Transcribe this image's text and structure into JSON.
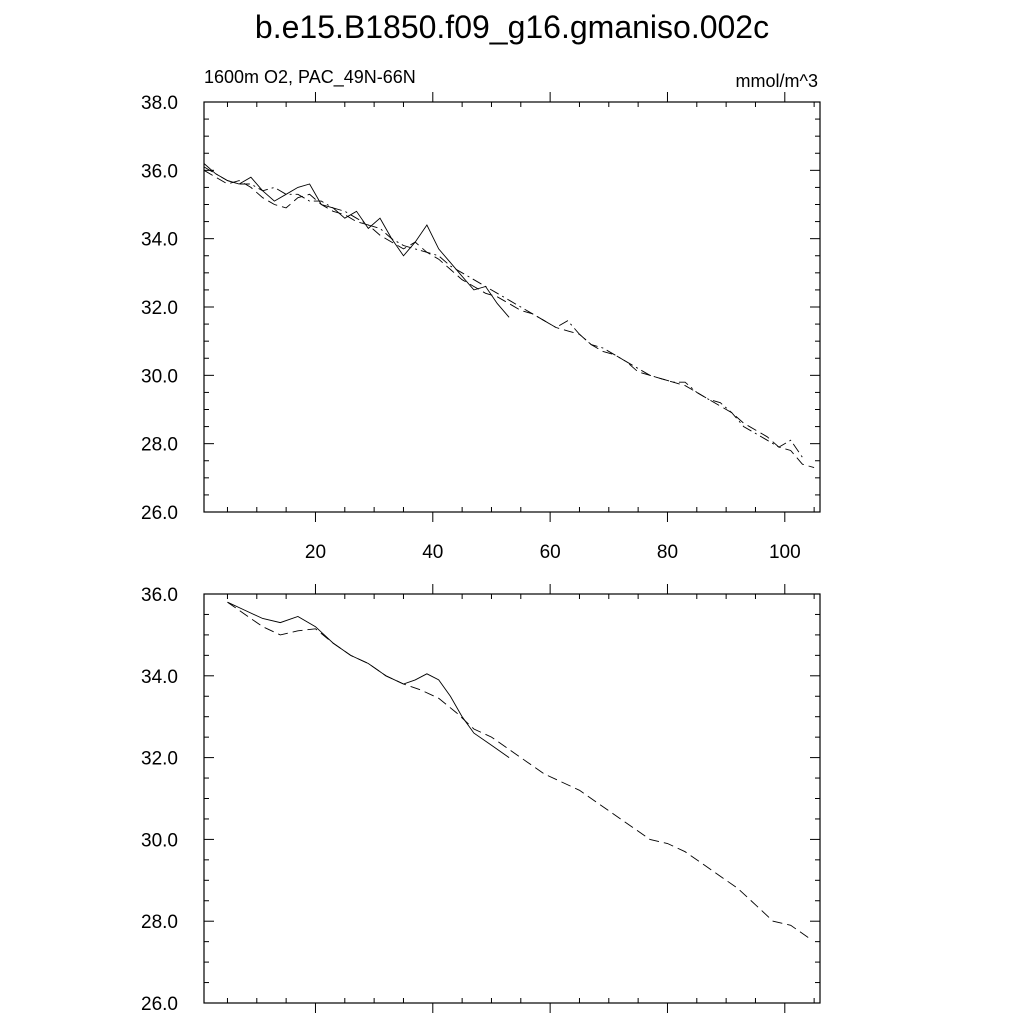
{
  "page_title": "b.e15.B1850.f09_g16.gmaniso.002c",
  "chart_data": [
    {
      "type": "line",
      "title": "b.e15.B1850.f09_g16.gmaniso.002c",
      "left_label": "1600m O2, PAC_49N-66N",
      "right_label": "mmol/m^3",
      "xlim": [
        1,
        106
      ],
      "ylim": [
        26,
        38
      ],
      "x_ticks": [
        20,
        40,
        60,
        80,
        100
      ],
      "x_tick_labels": [
        "20",
        "40",
        "60",
        "80",
        "100"
      ],
      "y_ticks": [
        26,
        28,
        30,
        32,
        34,
        36,
        38
      ],
      "y_tick_labels": [
        "26.0",
        "28.0",
        "30.0",
        "32.0",
        "34.0",
        "36.0",
        "38.0"
      ],
      "grid": false,
      "series": [
        {
          "style": "solid",
          "x": [
            1,
            3,
            5,
            7,
            9,
            11,
            13,
            15,
            17,
            19,
            21,
            23,
            25,
            27,
            29,
            31,
            33,
            35,
            37,
            39,
            41,
            43,
            45,
            47,
            49,
            51,
            53
          ],
          "y": [
            36.2,
            35.9,
            35.7,
            35.6,
            35.8,
            35.4,
            35.1,
            35.3,
            35.5,
            35.6,
            35.0,
            34.9,
            34.6,
            34.8,
            34.3,
            34.6,
            34.0,
            33.5,
            33.9,
            34.4,
            33.7,
            33.3,
            32.9,
            32.5,
            32.6,
            32.1,
            31.7
          ]
        },
        {
          "style": "dashed",
          "x": [
            1,
            3,
            5,
            7,
            9,
            11,
            13,
            15,
            17,
            19,
            21,
            23,
            25,
            27,
            29,
            31,
            33,
            35,
            37,
            39,
            41,
            43,
            45,
            47,
            49,
            51,
            53,
            55,
            57,
            59,
            61,
            63,
            65,
            67,
            69,
            71,
            73,
            75,
            77,
            79,
            81,
            83,
            85,
            87,
            89,
            91,
            93,
            95,
            97,
            99,
            101,
            103,
            105
          ],
          "y": [
            36.0,
            35.8,
            35.6,
            35.7,
            35.5,
            35.2,
            35.0,
            34.9,
            35.2,
            35.3,
            35.0,
            34.8,
            34.7,
            34.5,
            34.4,
            34.1,
            33.9,
            33.7,
            33.9,
            33.6,
            33.4,
            33.1,
            32.8,
            32.6,
            32.4,
            32.3,
            32.1,
            31.9,
            31.8,
            31.6,
            31.4,
            31.3,
            31.2,
            30.9,
            30.7,
            30.6,
            30.4,
            30.1,
            30.0,
            29.9,
            29.8,
            29.7,
            29.5,
            29.3,
            29.1,
            28.9,
            28.6,
            28.4,
            28.2,
            27.9,
            27.8,
            27.4,
            27.3
          ]
        },
        {
          "style": "dashdot",
          "x": [
            1,
            3,
            5,
            7,
            9,
            11,
            13,
            15,
            17,
            19,
            21,
            23,
            25,
            27,
            29,
            31,
            33,
            35,
            37,
            39,
            41,
            43,
            45,
            47,
            49,
            51,
            53,
            55,
            57,
            59,
            61,
            63,
            65,
            67,
            69,
            71,
            73,
            75,
            77,
            79,
            81,
            83,
            85,
            87,
            89,
            91,
            93,
            95,
            97,
            99,
            101,
            103
          ],
          "y": [
            36.1,
            35.9,
            35.7,
            35.6,
            35.6,
            35.4,
            35.5,
            35.3,
            35.3,
            35.1,
            35.1,
            34.9,
            34.8,
            34.6,
            34.4,
            34.3,
            34.0,
            33.8,
            33.7,
            33.6,
            33.5,
            33.2,
            33.0,
            32.8,
            32.6,
            32.4,
            32.2,
            32.0,
            31.8,
            31.6,
            31.4,
            31.6,
            31.2,
            30.9,
            30.8,
            30.6,
            30.4,
            30.2,
            30.0,
            29.9,
            29.8,
            29.8,
            29.5,
            29.3,
            29.2,
            28.9,
            28.5,
            28.3,
            28.1,
            27.9,
            28.1,
            27.6
          ]
        }
      ]
    },
    {
      "type": "line",
      "xlim": [
        1,
        106
      ],
      "ylim": [
        26,
        36
      ],
      "x_ticks": [
        20,
        40,
        60,
        80,
        100
      ],
      "y_ticks": [
        26,
        28,
        30,
        32,
        34,
        36
      ],
      "y_tick_labels": [
        "26.0",
        "28.0",
        "30.0",
        "32.0",
        "34.0",
        "36.0"
      ],
      "grid": false,
      "series": [
        {
          "style": "solid",
          "x": [
            5,
            8,
            11,
            14,
            17,
            20,
            23,
            26,
            29,
            32,
            35,
            37,
            39,
            41,
            43,
            45,
            47,
            50,
            53
          ],
          "y": [
            35.8,
            35.6,
            35.4,
            35.3,
            35.45,
            35.2,
            34.8,
            34.5,
            34.3,
            34.0,
            33.8,
            33.9,
            34.05,
            33.9,
            33.5,
            33.0,
            32.6,
            32.3,
            32.0
          ]
        },
        {
          "style": "dashed",
          "x": [
            5,
            8,
            11,
            14,
            17,
            20,
            23,
            26,
            29,
            32,
            35,
            38,
            41,
            44,
            47,
            50,
            53,
            56,
            59,
            62,
            65,
            68,
            71,
            74,
            77,
            80,
            83,
            86,
            89,
            92,
            95,
            98,
            101,
            104
          ],
          "y": [
            35.8,
            35.5,
            35.2,
            35.0,
            35.1,
            35.15,
            34.8,
            34.5,
            34.3,
            34.0,
            33.8,
            33.65,
            33.45,
            33.1,
            32.7,
            32.5,
            32.2,
            31.9,
            31.6,
            31.4,
            31.2,
            30.9,
            30.6,
            30.3,
            30.0,
            29.9,
            29.7,
            29.4,
            29.1,
            28.8,
            28.4,
            28.0,
            27.9,
            27.6
          ]
        }
      ]
    }
  ]
}
